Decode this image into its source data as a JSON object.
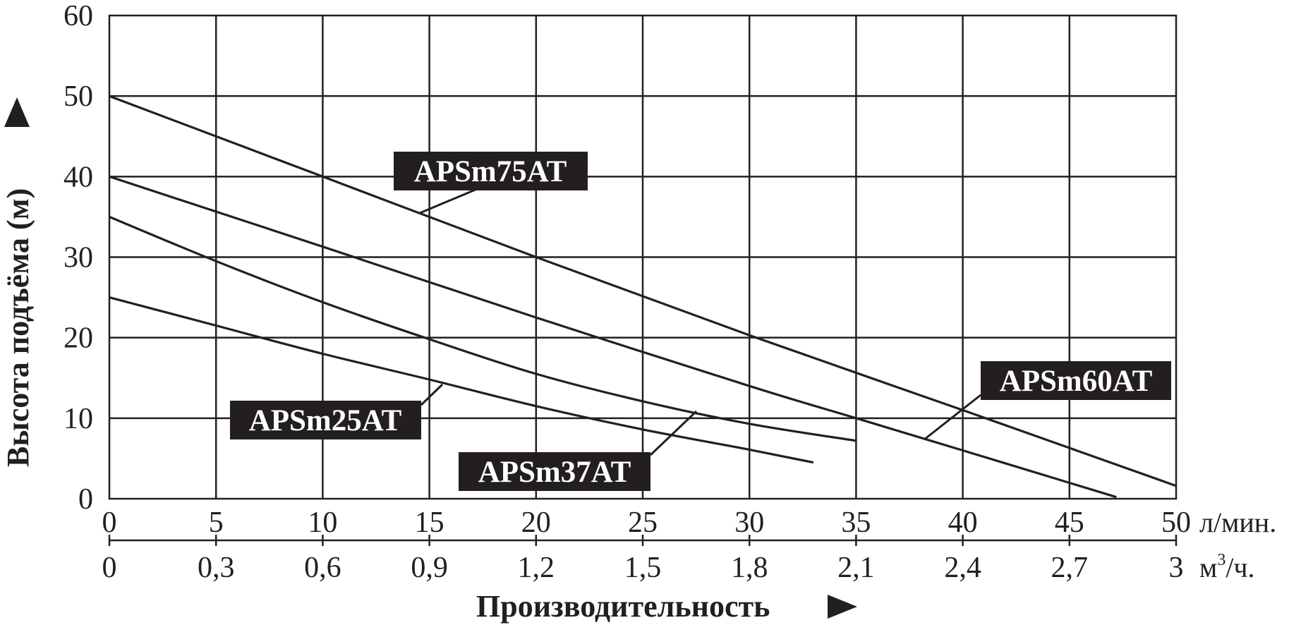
{
  "chart_data": {
    "type": "line",
    "title": "",
    "ylabel": "Высота подъёма (м)",
    "xlabel": "Производительность",
    "x_unit": "л/мин.",
    "x2_unit_main": "м",
    "x2_unit_sup": "3",
    "x2_unit_tail": "/ч.",
    "xlim": [
      0,
      50
    ],
    "ylim": [
      0,
      60
    ],
    "grid": true,
    "x_ticks": [
      "0",
      "5",
      "10",
      "15",
      "20",
      "25",
      "30",
      "35",
      "40",
      "45",
      "50"
    ],
    "x2_ticks": [
      "0",
      "0,3",
      "0,6",
      "0,9",
      "1,2",
      "1,5",
      "1,8",
      "2,1",
      "2,4",
      "2,7",
      "3"
    ],
    "y_ticks": [
      "0",
      "10",
      "20",
      "30",
      "40",
      "50",
      "60"
    ],
    "series": [
      {
        "name": "APSm75AT",
        "x": [
          0,
          10,
          20,
          30,
          40,
          50
        ],
        "y": [
          50,
          40,
          30,
          20.3,
          11,
          1.6
        ]
      },
      {
        "name": "APSm60AT",
        "x": [
          0,
          10,
          20,
          30,
          35,
          40,
          47.2
        ],
        "y": [
          40,
          31.3,
          22.5,
          14,
          10,
          6,
          0.2
        ]
      },
      {
        "name": "APSm37AT",
        "x": [
          0,
          5,
          10,
          15,
          20,
          25,
          30,
          35
        ],
        "y": [
          35,
          29.5,
          24.4,
          19.8,
          15.5,
          12.1,
          9.3,
          7.2
        ]
      },
      {
        "name": "APSm25AT",
        "x": [
          0,
          5,
          10,
          15,
          20,
          25,
          30,
          33
        ],
        "y": [
          25,
          21.5,
          18,
          14.8,
          11.5,
          8.6,
          6.1,
          4.5
        ]
      }
    ]
  }
}
